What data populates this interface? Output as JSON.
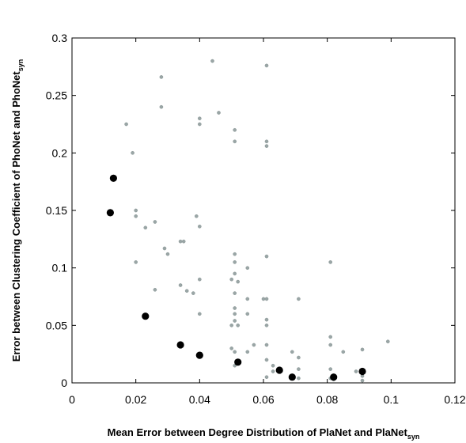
{
  "chart_data": {
    "type": "scatter",
    "title": "",
    "xlabel": {
      "main": "Mean Error between Degree Distribution of PlaNet and PlaNet",
      "sub": "syn"
    },
    "ylabel": {
      "main": "Error between Clustering Coefficient of PhoNet and PhoNet",
      "sub": "syn"
    },
    "xlim": [
      0,
      0.12
    ],
    "ylim": [
      0,
      0.3
    ],
    "x_ticks": [
      "0",
      "0.02",
      "0.04",
      "0.06",
      "0.08",
      "0.1",
      "0.12"
    ],
    "y_ticks": [
      "0",
      "0.05",
      "0.1",
      "0.15",
      "0.2",
      "0.25",
      "0.3"
    ],
    "grid": false,
    "colors": {
      "small": "#9aa6a6",
      "large": "#000000",
      "axis": "#000000"
    },
    "series": [
      {
        "marker": "small-gray-dot",
        "points": [
          [
            0.044,
            0.28
          ],
          [
            0.061,
            0.276
          ],
          [
            0.028,
            0.266
          ],
          [
            0.028,
            0.24
          ],
          [
            0.046,
            0.235
          ],
          [
            0.04,
            0.23
          ],
          [
            0.04,
            0.225
          ],
          [
            0.017,
            0.225
          ],
          [
            0.051,
            0.22
          ],
          [
            0.051,
            0.21
          ],
          [
            0.061,
            0.21
          ],
          [
            0.061,
            0.206
          ],
          [
            0.019,
            0.2
          ],
          [
            0.02,
            0.15
          ],
          [
            0.02,
            0.145
          ],
          [
            0.039,
            0.145
          ],
          [
            0.04,
            0.136
          ],
          [
            0.026,
            0.14
          ],
          [
            0.023,
            0.135
          ],
          [
            0.034,
            0.123
          ],
          [
            0.035,
            0.123
          ],
          [
            0.029,
            0.117
          ],
          [
            0.03,
            0.112
          ],
          [
            0.051,
            0.112
          ],
          [
            0.051,
            0.105
          ],
          [
            0.02,
            0.105
          ],
          [
            0.061,
            0.11
          ],
          [
            0.081,
            0.105
          ],
          [
            0.055,
            0.1
          ],
          [
            0.051,
            0.095
          ],
          [
            0.04,
            0.09
          ],
          [
            0.05,
            0.09
          ],
          [
            0.052,
            0.088
          ],
          [
            0.034,
            0.085
          ],
          [
            0.036,
            0.08
          ],
          [
            0.038,
            0.078
          ],
          [
            0.026,
            0.081
          ],
          [
            0.051,
            0.078
          ],
          [
            0.06,
            0.073
          ],
          [
            0.061,
            0.073
          ],
          [
            0.055,
            0.073
          ],
          [
            0.071,
            0.073
          ],
          [
            0.051,
            0.065
          ],
          [
            0.04,
            0.06
          ],
          [
            0.051,
            0.06
          ],
          [
            0.055,
            0.06
          ],
          [
            0.051,
            0.054
          ],
          [
            0.061,
            0.055
          ],
          [
            0.061,
            0.05
          ],
          [
            0.05,
            0.05
          ],
          [
            0.052,
            0.05
          ],
          [
            0.081,
            0.04
          ],
          [
            0.099,
            0.036
          ],
          [
            0.057,
            0.033
          ],
          [
            0.061,
            0.033
          ],
          [
            0.081,
            0.033
          ],
          [
            0.05,
            0.03
          ],
          [
            0.051,
            0.027
          ],
          [
            0.055,
            0.027
          ],
          [
            0.069,
            0.027
          ],
          [
            0.085,
            0.027
          ],
          [
            0.091,
            0.029
          ],
          [
            0.071,
            0.022
          ],
          [
            0.061,
            0.02
          ],
          [
            0.063,
            0.015
          ],
          [
            0.051,
            0.015
          ],
          [
            0.081,
            0.012
          ],
          [
            0.071,
            0.012
          ],
          [
            0.063,
            0.01
          ],
          [
            0.089,
            0.01
          ],
          [
            0.091,
            0.006
          ],
          [
            0.061,
            0.005
          ],
          [
            0.069,
            0.004
          ],
          [
            0.071,
            0.004
          ],
          [
            0.081,
            0.004
          ],
          [
            0.082,
            0.003
          ],
          [
            0.091,
            0.002
          ]
        ]
      },
      {
        "marker": "large-black-dot",
        "points": [
          [
            0.013,
            0.178
          ],
          [
            0.012,
            0.148
          ],
          [
            0.023,
            0.058
          ],
          [
            0.034,
            0.033
          ],
          [
            0.04,
            0.024
          ],
          [
            0.052,
            0.018
          ],
          [
            0.065,
            0.011
          ],
          [
            0.069,
            0.005
          ],
          [
            0.082,
            0.005
          ],
          [
            0.091,
            0.01
          ]
        ]
      }
    ]
  }
}
